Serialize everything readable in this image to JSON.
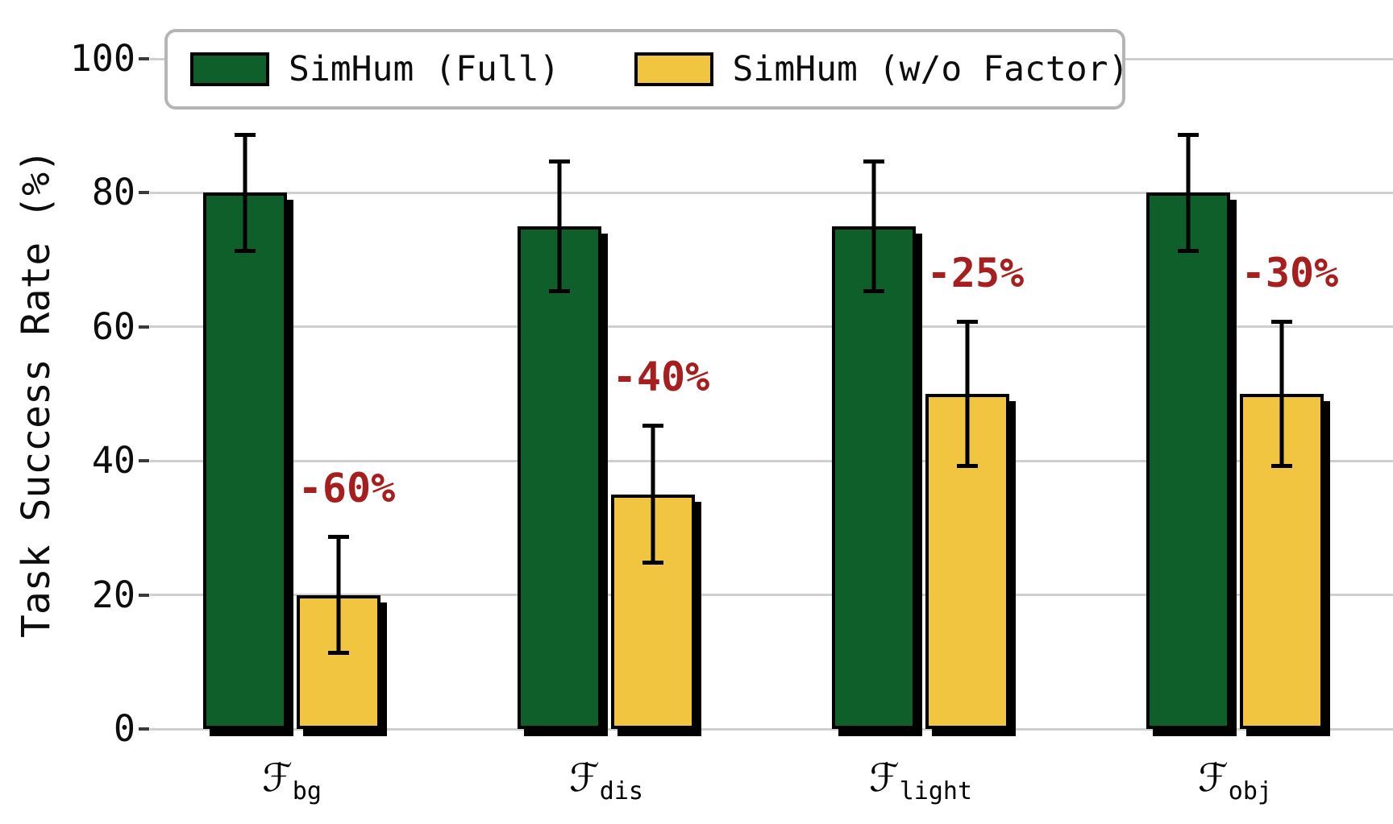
{
  "chart_data": {
    "type": "bar",
    "title": "",
    "xlabel": "",
    "ylabel": "Task Success Rate (%)",
    "ylim": [
      0,
      100
    ],
    "yticks": [
      0,
      20,
      40,
      60,
      80,
      100
    ],
    "grid": "horizontal",
    "legend_position": "top-inside",
    "background_color": "#ffffff",
    "gridline_color": "#cfcfcf",
    "bar_edge_color": "#000000",
    "error_bar_color": "#000000",
    "annotation_color": "#a61e1e",
    "categories": [
      {
        "key": "bg",
        "base": "ℱ",
        "sub": "bg"
      },
      {
        "key": "dis",
        "base": "ℱ",
        "sub": "dis"
      },
      {
        "key": "light",
        "base": "ℱ",
        "sub": "light"
      },
      {
        "key": "obj",
        "base": "ℱ",
        "sub": "obj"
      }
    ],
    "series": [
      {
        "key": "full",
        "name": "SimHum (Full)",
        "color": "#0f5f2a",
        "values": [
          80,
          75,
          75,
          80
        ],
        "errors": [
          9,
          10,
          10,
          9
        ]
      },
      {
        "key": "wo-factor",
        "name": "SimHum (w/o Factor)",
        "color": "#f1c53f",
        "values": [
          20,
          35,
          50,
          50
        ],
        "errors": [
          9,
          10.5,
          11,
          11
        ]
      }
    ],
    "annotations": [
      {
        "text": "-60%",
        "category": 0
      },
      {
        "text": "-40%",
        "category": 1
      },
      {
        "text": "-25%",
        "category": 2
      },
      {
        "text": "-30%",
        "category": 3
      }
    ]
  }
}
